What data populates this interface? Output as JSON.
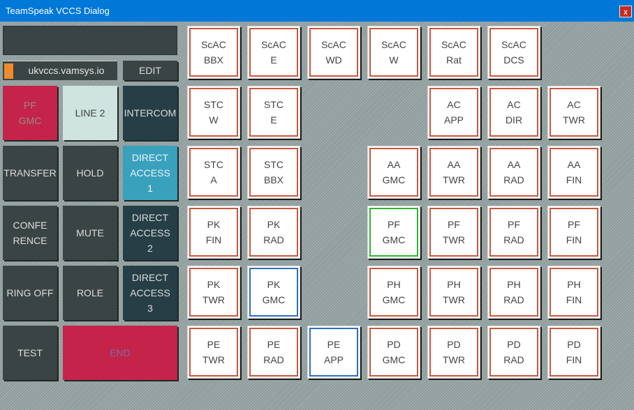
{
  "window": {
    "title": "TeamSpeak VCCS Dialog",
    "close_label": "x"
  },
  "display": {
    "text": ""
  },
  "server": {
    "name": "ukvccs.vamsys.io",
    "indicator_color": "#f08a2c"
  },
  "controls": {
    "edit": "EDIT",
    "active_line": "PF\nGMC",
    "line2": "LINE 2",
    "intercom": "INTERCOM",
    "transfer": "TRANSFER",
    "hold": "HOLD",
    "direct_access_1": "DIRECT\nACCESS\n1",
    "conference": "CONFE\nRENCE",
    "mute": "MUTE",
    "direct_access_2": "DIRECT\nACCESS\n2",
    "ring_off": "RING OFF",
    "role": "ROLE",
    "direct_access_3": "DIRECT\nACCESS\n3",
    "test": "TEST",
    "end": "END"
  },
  "positions": [
    {
      "id": "scac-bbx",
      "label": "ScAC\nBBX",
      "status": "normal"
    },
    {
      "id": "scac-e",
      "label": "ScAC\nE",
      "status": "normal"
    },
    {
      "id": "scac-wd",
      "label": "ScAC\nWD",
      "status": "normal"
    },
    {
      "id": "scac-w",
      "label": "ScAC\nW",
      "status": "normal"
    },
    {
      "id": "scac-rat",
      "label": "ScAC\nRat",
      "status": "normal"
    },
    {
      "id": "scac-dcs",
      "label": "ScAC\nDCS",
      "status": "normal"
    },
    {
      "id": "stc-w",
      "label": "STC\nW",
      "status": "normal"
    },
    {
      "id": "stc-e",
      "label": "STC\nE",
      "status": "normal"
    },
    {
      "id": "ac-app",
      "label": "AC\nAPP",
      "status": "normal"
    },
    {
      "id": "ac-dir",
      "label": "AC\nDIR",
      "status": "normal"
    },
    {
      "id": "ac-twr",
      "label": "AC\nTWR",
      "status": "normal"
    },
    {
      "id": "stc-a",
      "label": "STC\nA",
      "status": "normal"
    },
    {
      "id": "stc-bbx",
      "label": "STC\nBBX",
      "status": "normal"
    },
    {
      "id": "aa-gmc",
      "label": "AA\nGMC",
      "status": "normal"
    },
    {
      "id": "aa-twr",
      "label": "AA\nTWR",
      "status": "normal"
    },
    {
      "id": "aa-rad",
      "label": "AA\nRAD",
      "status": "normal"
    },
    {
      "id": "aa-fin",
      "label": "AA\nFIN",
      "status": "normal"
    },
    {
      "id": "pk-fin",
      "label": "PK\nFIN",
      "status": "normal"
    },
    {
      "id": "pk-rad",
      "label": "PK\nRAD",
      "status": "normal"
    },
    {
      "id": "pf-gmc",
      "label": "PF\nGMC",
      "status": "active"
    },
    {
      "id": "pf-twr",
      "label": "PF\nTWR",
      "status": "normal"
    },
    {
      "id": "pf-rad",
      "label": "PF\nRAD",
      "status": "normal"
    },
    {
      "id": "pf-fin",
      "label": "PF\nFIN",
      "status": "normal"
    },
    {
      "id": "pk-twr",
      "label": "PK\nTWR",
      "status": "normal"
    },
    {
      "id": "pk-gmc",
      "label": "PK\nGMC",
      "status": "selected"
    },
    {
      "id": "ph-gmc",
      "label": "PH\nGMC",
      "status": "normal"
    },
    {
      "id": "ph-twr",
      "label": "PH\nTWR",
      "status": "normal"
    },
    {
      "id": "ph-rad",
      "label": "PH\nRAD",
      "status": "normal"
    },
    {
      "id": "ph-fin",
      "label": "PH\nFIN",
      "status": "normal"
    },
    {
      "id": "pe-twr",
      "label": "PE\nTWR",
      "status": "normal"
    },
    {
      "id": "pe-rad",
      "label": "PE\nRAD",
      "status": "normal"
    },
    {
      "id": "pe-app",
      "label": "PE\nAPP",
      "status": "selected"
    },
    {
      "id": "pd-gmc",
      "label": "PD\nGMC",
      "status": "normal"
    },
    {
      "id": "pd-twr",
      "label": "PD\nTWR",
      "status": "normal"
    },
    {
      "id": "pd-rad",
      "label": "PD\nRAD",
      "status": "normal"
    },
    {
      "id": "pd-fin",
      "label": "PD\nFIN",
      "status": "normal"
    }
  ],
  "colors": {
    "border_normal": "#c9573c",
    "border_active": "#2db52d",
    "border_selected": "#2e6dc0",
    "active_line_bg": "#c4234a",
    "end_bg": "#c4234a"
  }
}
